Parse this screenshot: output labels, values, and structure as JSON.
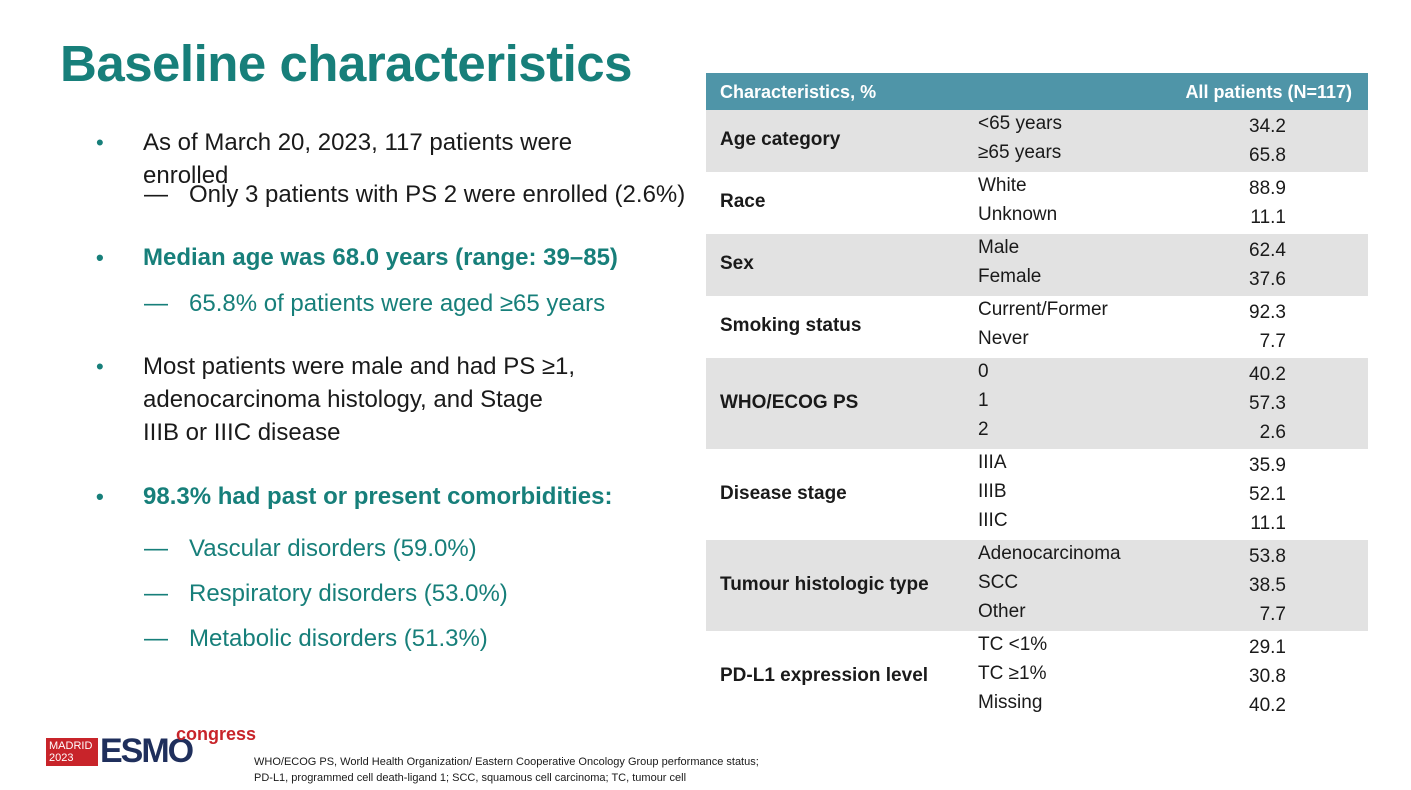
{
  "title": "Baseline characteristics",
  "bullets": [
    {
      "text": "As of March 20, 2023, 117 patients were enrolled"
    },
    {
      "sub": "Only 3 patients with PS 2 were enrolled (2.6%)"
    },
    {
      "text": "Median age was 68.0 years (range: 39–85)"
    },
    {
      "sub": "65.8% of patients were aged ≥65 years"
    },
    {
      "text": "Most patients were male and had PS ≥1, adenocarcinoma histology, and Stage IIIB or IIIC disease"
    },
    {
      "text": "98.3% had past or present comorbidities:"
    },
    {
      "sub": "Vascular disorders (59.0%)"
    },
    {
      "sub": "Respiratory disorders (53.0%)"
    },
    {
      "sub": "Metabolic disorders (51.3%)"
    }
  ],
  "bullet_glyph": "•",
  "dash_glyph": "—",
  "table": {
    "headers": [
      "Characteristics, %",
      "All patients (N=117)"
    ],
    "groups": [
      {
        "label": "Age category",
        "rows": [
          [
            "<65 years",
            "34.2"
          ],
          [
            "≥65 years",
            "65.8"
          ]
        ]
      },
      {
        "label": "Race",
        "rows": [
          [
            "White",
            "88.9"
          ],
          [
            "Unknown",
            "11.1"
          ]
        ]
      },
      {
        "label": "Sex",
        "rows": [
          [
            "Male",
            "62.4"
          ],
          [
            "Female",
            "37.6"
          ]
        ]
      },
      {
        "label": "Smoking status",
        "rows": [
          [
            "Current/Former",
            "92.3"
          ],
          [
            "Never",
            "7.7"
          ]
        ]
      },
      {
        "label": "WHO/ECOG PS",
        "rows": [
          [
            "0",
            "40.2"
          ],
          [
            "1",
            "57.3"
          ],
          [
            "2",
            "2.6"
          ]
        ]
      },
      {
        "label": "Disease stage",
        "rows": [
          [
            "IIIA",
            "35.9"
          ],
          [
            "IIIB",
            "52.1"
          ],
          [
            "IIIC",
            "11.1"
          ]
        ]
      },
      {
        "label": "Tumour histologic type",
        "rows": [
          [
            "Adenocarcinoma",
            "53.8"
          ],
          [
            "SCC",
            "38.5"
          ],
          [
            "Other",
            "7.7"
          ]
        ]
      },
      {
        "label": "PD-L1 expression level",
        "rows": [
          [
            "TC <1%",
            "29.1"
          ],
          [
            "TC ≥1%",
            "30.8"
          ],
          [
            "Missing",
            "40.2"
          ]
        ]
      }
    ]
  },
  "logo": {
    "city": "MADRID",
    "year": "2023",
    "brand": "ESMO",
    "suffix": "congress"
  },
  "footnote": [
    "WHO/ECOG PS, World Health Organization/ Eastern Cooperative Oncology Group performance status;",
    "PD-L1, programmed cell death-ligand 1; SCC, squamous cell carcinoma; TC, tumour cell"
  ],
  "colors": {
    "teal": "#177f7a",
    "header": "#4f95a8",
    "shade": "#e2e2e2",
    "brand_red": "#c8242a",
    "brand_navy": "#1f2f5c"
  }
}
